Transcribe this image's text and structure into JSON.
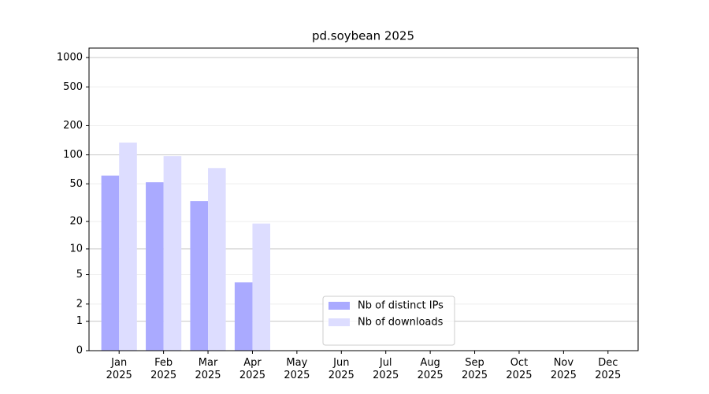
{
  "chart_data": {
    "type": "bar",
    "title": "pd.soybean 2025",
    "scale": "log1p",
    "grid": true,
    "legend": "lower center",
    "categories": [
      "Jan\n2025",
      "Feb\n2025",
      "Mar\n2025",
      "Apr\n2025",
      "May\n2025",
      "Jun\n2025",
      "Jul\n2025",
      "Aug\n2025",
      "Sep\n2025",
      "Oct\n2025",
      "Nov\n2025",
      "Dec\n2025"
    ],
    "series": [
      {
        "name": "Nb of distinct IPs",
        "color": "#aaaaff",
        "values": [
          61,
          52,
          33,
          4,
          null,
          null,
          null,
          null,
          null,
          null,
          null,
          null
        ]
      },
      {
        "name": "Nb of downloads",
        "color": "#ddddff",
        "values": [
          134,
          97,
          73,
          19,
          null,
          null,
          null,
          null,
          null,
          null,
          null,
          null
        ]
      }
    ],
    "ylim": [
      0,
      1250
    ],
    "yticks": [
      0,
      1,
      2,
      5,
      10,
      20,
      50,
      100,
      200,
      500,
      1000
    ]
  }
}
